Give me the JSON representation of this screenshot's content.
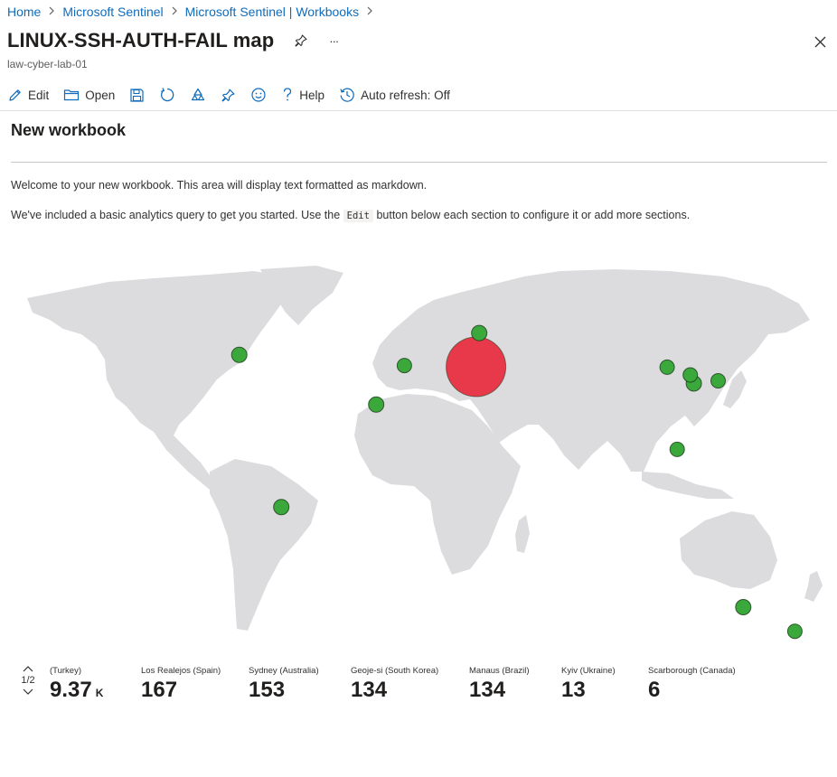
{
  "breadcrumb": {
    "items": [
      "Home",
      "Microsoft Sentinel",
      "Microsoft Sentinel | Workbooks"
    ]
  },
  "header": {
    "title": "LINUX-SSH-AUTH-FAIL map",
    "subtitle": "law-cyber-lab-01",
    "more_label": "···"
  },
  "toolbar": {
    "edit": "Edit",
    "open": "Open",
    "help": "Help",
    "auto_refresh": "Auto refresh: Off"
  },
  "workbook": {
    "title": "New workbook",
    "para1": "Welcome to your new workbook. This area will display text formatted as markdown.",
    "para2_prefix": "We've included a basic analytics query to get you started. Use the",
    "para2_code": "Edit",
    "para2_suffix": "button below each section to configure it or add more sections."
  },
  "map": {
    "land_color": "#dcdcde",
    "high_color": "#e8394a",
    "low_color": "#3aa83a",
    "markers": [
      {
        "lat": 40.0,
        "lon": 29.0,
        "value": 9370,
        "level": "high"
      },
      {
        "lat": 50.4,
        "lon": 30.5,
        "value": 13,
        "level": "low"
      },
      {
        "lat": 43.7,
        "lon": -79.2,
        "value": 6,
        "level": "low"
      },
      {
        "lat": 28.4,
        "lon": -16.6,
        "value": 167,
        "level": "low"
      },
      {
        "lat": -33.9,
        "lon": 151.2,
        "value": 153,
        "level": "low"
      },
      {
        "lat": 34.9,
        "lon": 128.6,
        "value": 134,
        "level": "low"
      },
      {
        "lat": -3.1,
        "lon": -60.0,
        "value": 134,
        "level": "low"
      },
      {
        "lat": 40.4,
        "lon": -3.7,
        "value": 0,
        "level": "low"
      },
      {
        "lat": 37.5,
        "lon": 127.0,
        "value": 0,
        "level": "low"
      },
      {
        "lat": 39.9,
        "lon": 116.4,
        "value": 0,
        "level": "low"
      },
      {
        "lat": 35.7,
        "lon": 139.7,
        "value": 0,
        "level": "low"
      },
      {
        "lat": 14.6,
        "lon": 121.0,
        "value": 0,
        "level": "low"
      },
      {
        "lat": -41.3,
        "lon": 174.8,
        "value": 0,
        "level": "low"
      }
    ]
  },
  "tiles": {
    "page": "1/2",
    "items": [
      {
        "label": "(Turkey)",
        "value": "9.37",
        "unit": "K"
      },
      {
        "label": "Los Realejos (Spain)",
        "value": "167",
        "unit": ""
      },
      {
        "label": "Sydney (Australia)",
        "value": "153",
        "unit": ""
      },
      {
        "label": "Geoje-si (South Korea)",
        "value": "134",
        "unit": ""
      },
      {
        "label": "Manaus (Brazil)",
        "value": "134",
        "unit": ""
      },
      {
        "label": "Kyiv (Ukraine)",
        "value": "13",
        "unit": ""
      },
      {
        "label": "Scarborough (Canada)",
        "value": "6",
        "unit": ""
      }
    ]
  }
}
